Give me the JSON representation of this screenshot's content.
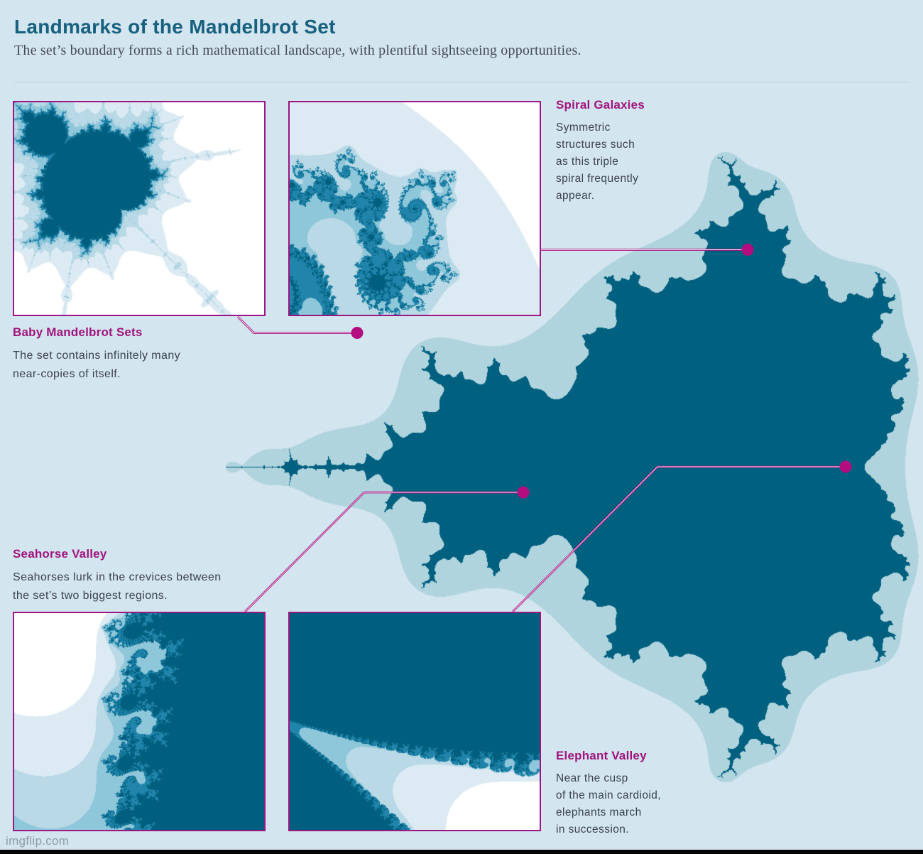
{
  "page": {
    "title": "Landmarks of the Mandelbrot Set",
    "subtitle": "The set’s boundary forms a rich mathematical landscape, with plentiful sightseeing opportunities.",
    "watermark": "imgflip.com"
  },
  "callouts": [
    {
      "id": "baby-mandelbrot-sets",
      "title": "Baby Mandelbrot Sets",
      "lines": [
        "The set contains infinitely many",
        "near-copies of itself."
      ]
    },
    {
      "id": "spiral-galaxies",
      "title": "Spiral Galaxies",
      "lines": [
        "Symmetric",
        "structures such",
        "as this triple",
        "spiral frequently",
        "appear."
      ]
    },
    {
      "id": "seahorse-valley",
      "title": "Seahorse Valley",
      "lines": [
        "Seahorses lurk in the crevices between",
        "the set’s two biggest regions."
      ]
    },
    {
      "id": "elephant-valley",
      "title": "Elephant Valley",
      "lines": [
        "Near the cusp",
        "of the main cardioid,",
        "elephants march",
        "in succession."
      ]
    }
  ],
  "colors": {
    "background": "#d3e5ef",
    "accent_magenta": "#a0147c",
    "dot_magenta": "#b30d80",
    "line_magenta": "#a90f7d",
    "title_teal": "#17617f",
    "overview_palette": [
      "#d3e5ef",
      "#b0d4de",
      "#00607f"
    ],
    "zoom_palette": [
      "#ffffff",
      "#dcebf3",
      "#b9d9e6",
      "#8ec6da",
      "#2185ab",
      "#005f7e"
    ]
  }
}
